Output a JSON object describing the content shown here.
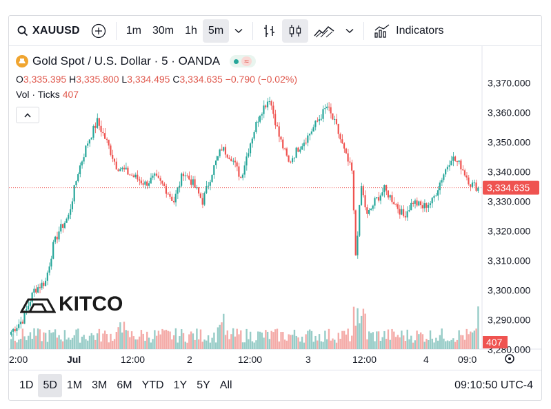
{
  "toolbar": {
    "symbol": "XAUUSD",
    "intervals": [
      "1m",
      "30m",
      "1h",
      "5m"
    ],
    "active_interval": "5m",
    "indicators_label": "Indicators"
  },
  "legend": {
    "title": "Gold Spot / U.S. Dollar · 5 · OANDA",
    "o_label": "O",
    "o_value": "3,335.395",
    "h_label": "H",
    "h_value": "3,335.800",
    "l_label": "L",
    "l_value": "3,334.495",
    "c_label": "C",
    "c_value": "3,334.635",
    "change": "−0.790 (−0.02%)",
    "vol_label": "Vol · Ticks",
    "vol_value": "407",
    "wave_symbol": "≈"
  },
  "logo": {
    "text": "KITCO"
  },
  "time_axis": [
    "2:00",
    "Jul",
    "12:00",
    "2",
    "12:00",
    "3",
    "12:00",
    "4",
    "09:0"
  ],
  "price_axis": [
    "3,370.000",
    "3,360.000",
    "3,350.000",
    "3,340.000",
    "3,330.000",
    "3,320.000",
    "3,310.000",
    "3,300.000",
    "3,290.000",
    "3,280.000"
  ],
  "last_price_label": "3,334.635",
  "last_volume_label": "407",
  "ranges": [
    "1D",
    "5D",
    "1M",
    "3M",
    "6M",
    "YTD",
    "1Y",
    "5Y",
    "All"
  ],
  "active_range": "5D",
  "clock": "09:10:50 UTC-4",
  "colors": {
    "up": "#26a69a",
    "down": "#ef5350",
    "last_price": "#ef5350",
    "volume_up": "#8cc7c1",
    "volume_down": "#f3a29f"
  },
  "chart_data": {
    "type": "candlestick",
    "title": "Gold Spot / U.S. Dollar · 5 · OANDA",
    "interval": "5m",
    "ylim": [
      3276,
      3375
    ],
    "y_ticks": [
      3370,
      3360,
      3350,
      3340,
      3330,
      3320,
      3310,
      3300,
      3290,
      3280
    ],
    "last_price": 3334.635,
    "x_labels": [
      "2:00",
      "Jul",
      "12:00",
      "2",
      "12:00",
      "3",
      "12:00",
      "4",
      "09:0"
    ],
    "path_closes": [
      [
        0,
        3286
      ],
      [
        6,
        3290
      ],
      [
        12,
        3300
      ],
      [
        18,
        3303
      ],
      [
        22,
        3315
      ],
      [
        25,
        3320
      ],
      [
        30,
        3325
      ],
      [
        35,
        3340
      ],
      [
        40,
        3350
      ],
      [
        45,
        3357
      ],
      [
        50,
        3350
      ],
      [
        55,
        3342
      ],
      [
        60,
        3340
      ],
      [
        65,
        3338
      ],
      [
        70,
        3336
      ],
      [
        75,
        3338
      ],
      [
        80,
        3335
      ],
      [
        85,
        3330
      ],
      [
        90,
        3340
      ],
      [
        95,
        3336
      ],
      [
        100,
        3330
      ],
      [
        105,
        3340
      ],
      [
        110,
        3348
      ],
      [
        115,
        3345
      ],
      [
        120,
        3338
      ],
      [
        125,
        3350
      ],
      [
        130,
        3360
      ],
      [
        135,
        3365
      ],
      [
        140,
        3352
      ],
      [
        145,
        3343
      ],
      [
        150,
        3348
      ],
      [
        155,
        3352
      ],
      [
        160,
        3357
      ],
      [
        165,
        3362
      ],
      [
        170,
        3355
      ],
      [
        175,
        3345
      ],
      [
        178,
        3340
      ],
      [
        180,
        3312
      ],
      [
        183,
        3335
      ],
      [
        186,
        3325
      ],
      [
        190,
        3330
      ],
      [
        195,
        3334
      ],
      [
        200,
        3330
      ],
      [
        205,
        3325
      ],
      [
        210,
        3330
      ],
      [
        215,
        3328
      ],
      [
        220,
        3330
      ],
      [
        225,
        3338
      ],
      [
        230,
        3345
      ],
      [
        235,
        3342
      ],
      [
        240,
        3336
      ],
      [
        244,
        3334.635
      ]
    ],
    "volume_max": 407,
    "last_volume": 407
  }
}
